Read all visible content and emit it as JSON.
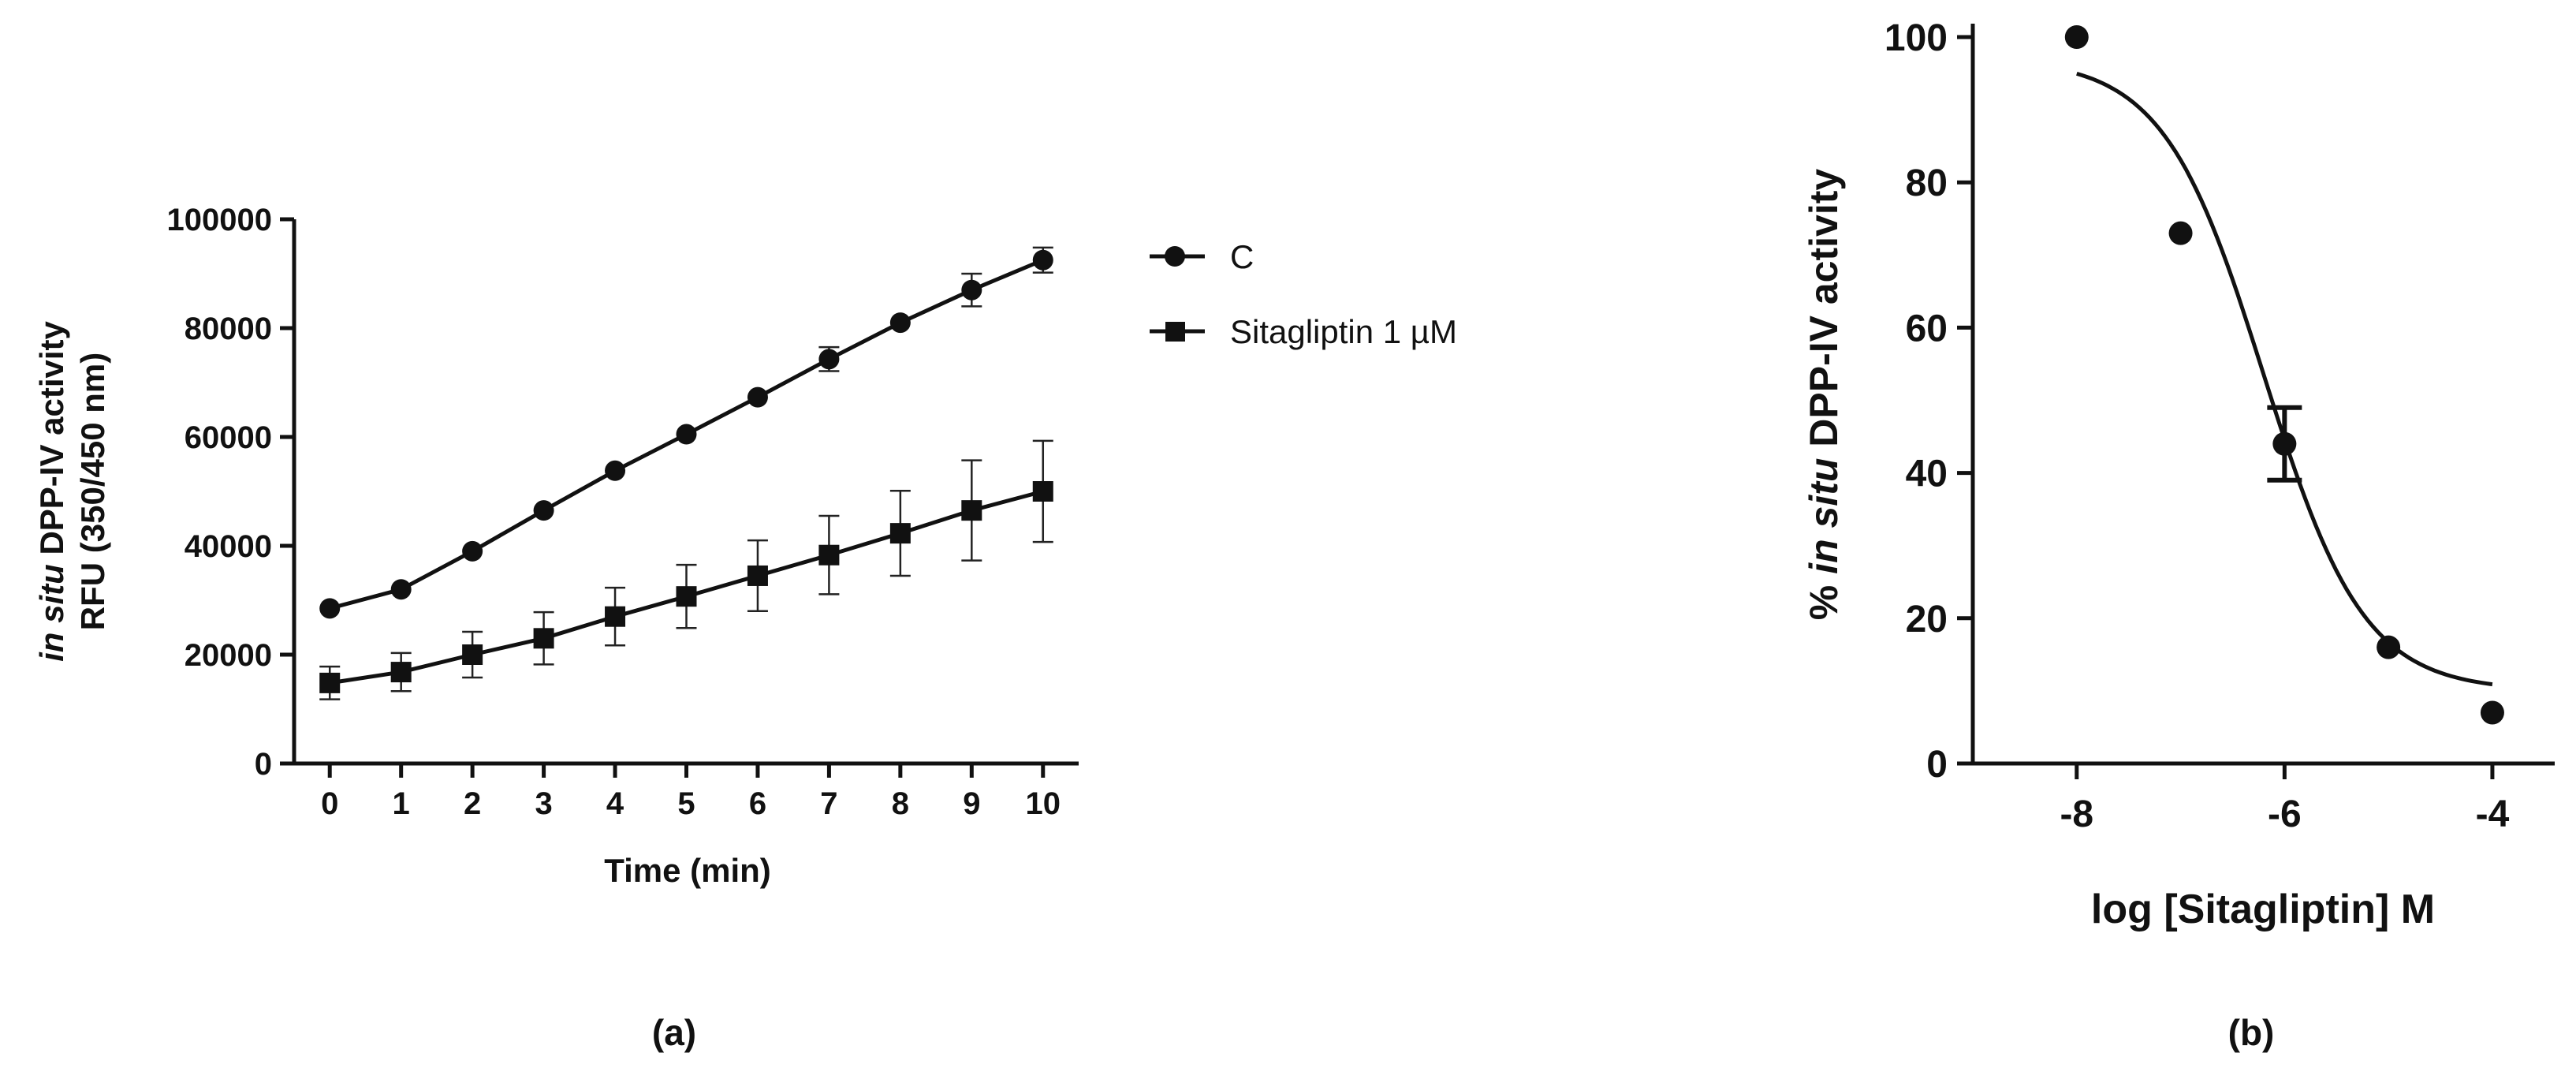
{
  "chart_data": [
    {
      "type": "line",
      "panel_label": "(a)",
      "xlabel": "Time (min)",
      "ylabel_italic": "in situ",
      "ylabel_rest": " DPP-IV activity",
      "ylabel_line2": "RFU (350/450 nm)",
      "xlim": [
        -0.5,
        10.5
      ],
      "ylim": [
        0,
        100000
      ],
      "x_ticks": [
        0,
        1,
        2,
        3,
        4,
        5,
        6,
        7,
        8,
        9,
        10
      ],
      "y_ticks": [
        0,
        20000,
        40000,
        60000,
        80000,
        100000
      ],
      "legend_position": "right",
      "series": [
        {
          "name": "C",
          "marker": "circle",
          "x": [
            0,
            1,
            2,
            3,
            4,
            5,
            6,
            7,
            8,
            9,
            10
          ],
          "values": [
            28500,
            32000,
            39000,
            46500,
            53800,
            60500,
            67300,
            74300,
            81000,
            87000,
            92500
          ],
          "errors": [
            0,
            0,
            0,
            0,
            0,
            0,
            0,
            2200,
            0,
            3000,
            2300
          ]
        },
        {
          "name": "Sitagliptin 1 µM",
          "marker": "square",
          "x": [
            0,
            1,
            2,
            3,
            4,
            5,
            6,
            7,
            8,
            9,
            10
          ],
          "values": [
            14800,
            16800,
            20000,
            23000,
            27000,
            30700,
            34500,
            38300,
            42300,
            46500,
            50000
          ],
          "errors": [
            3000,
            3500,
            4200,
            4800,
            5300,
            5800,
            6500,
            7200,
            7800,
            9200,
            9300
          ]
        }
      ]
    },
    {
      "type": "scatter",
      "panel_label": "(b)",
      "xlabel": "log [Sitagliptin] M",
      "ylabel_prefix": "% ",
      "ylabel_italic": "in situ",
      "ylabel_rest": " DPP-IV activity",
      "xlim": [
        -9,
        -3.4
      ],
      "ylim": [
        0,
        100
      ],
      "x_ticks": [
        -8,
        -6,
        -4
      ],
      "y_ticks": [
        0,
        20,
        40,
        60,
        80,
        100
      ],
      "points": {
        "x": [
          -8,
          -7,
          -6,
          -5,
          -4
        ],
        "values": [
          100,
          73,
          44,
          16,
          7
        ],
        "errors": [
          0,
          0,
          5,
          0,
          0
        ]
      },
      "fit": {
        "model": "sigmoidal dose-response",
        "top": 97,
        "bottom": 10,
        "log_ic50": -6.2,
        "hill_slope": -0.9
      }
    }
  ]
}
